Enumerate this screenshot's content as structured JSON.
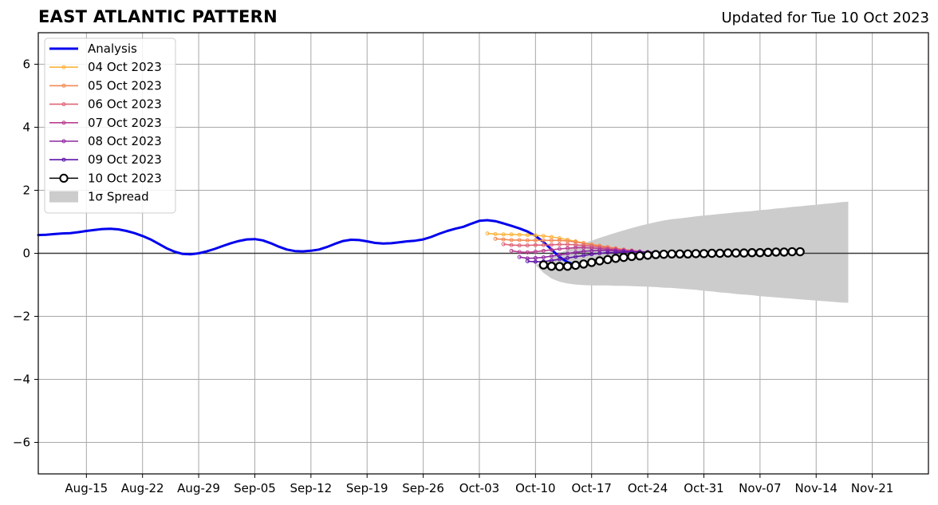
{
  "chart_data": {
    "type": "line",
    "title": "EAST ATLANTIC PATTERN",
    "subtitle": "Updated for Tue 10 Oct 2023",
    "xlabel": "",
    "ylabel": "",
    "xlim": [
      "2023-08-09",
      "2023-11-28"
    ],
    "ylim": [
      -7,
      7
    ],
    "x_ticks": [
      "2023-08-15",
      "2023-08-22",
      "2023-08-29",
      "2023-09-05",
      "2023-09-12",
      "2023-09-19",
      "2023-09-26",
      "2023-10-03",
      "2023-10-10",
      "2023-10-17",
      "2023-10-24",
      "2023-10-31",
      "2023-11-07",
      "2023-11-14",
      "2023-11-21"
    ],
    "x_tick_labels": [
      "Aug-15",
      "Aug-22",
      "Aug-29",
      "Sep-05",
      "Sep-12",
      "Sep-19",
      "Sep-26",
      "Oct-03",
      "Oct-10",
      "Oct-17",
      "Oct-24",
      "Oct-31",
      "Nov-07",
      "Nov-14",
      "Nov-21"
    ],
    "y_ticks": [
      -6,
      -4,
      -2,
      0,
      2,
      4,
      6
    ],
    "y_tick_labels": [
      "−6",
      "−4",
      "−2",
      "0",
      "2",
      "4",
      "6"
    ],
    "grid": true,
    "legend_position": "top-left",
    "colors": {
      "Analysis": "#0000ee",
      "04 Oct 2023": "#fbb441",
      "05 Oct 2023": "#f28a55",
      "06 Oct 2023": "#df6377",
      "07 Oct 2023": "#b93f8f",
      "08 Oct 2023": "#8f28a2",
      "09 Oct 2023": "#5d15a8",
      "10 Oct 2023": "#000000",
      "spread": "#cccccc"
    },
    "analysis": {
      "name": "Analysis",
      "start": "2023-08-09",
      "values": [
        0.58,
        0.59,
        0.61,
        0.63,
        0.64,
        0.67,
        0.71,
        0.74,
        0.77,
        0.78,
        0.76,
        0.71,
        0.64,
        0.55,
        0.44,
        0.3,
        0.16,
        0.05,
        -0.02,
        -0.03,
        0.0,
        0.06,
        0.14,
        0.23,
        0.32,
        0.39,
        0.44,
        0.45,
        0.41,
        0.32,
        0.21,
        0.12,
        0.07,
        0.06,
        0.08,
        0.12,
        0.2,
        0.3,
        0.39,
        0.43,
        0.42,
        0.38,
        0.33,
        0.31,
        0.32,
        0.35,
        0.38,
        0.4,
        0.44,
        0.52,
        0.62,
        0.71,
        0.78,
        0.84,
        0.94,
        1.03,
        1.05,
        1.02,
        0.95,
        0.87,
        0.79,
        0.69,
        0.55,
        0.36,
        0.12,
        -0.12,
        -0.28,
        -0.37
      ]
    },
    "forecasts": [
      {
        "name": "04 Oct 2023",
        "start": "2023-10-04",
        "values": [
          0.63,
          0.61,
          0.6,
          0.6,
          0.59,
          0.58,
          0.57,
          0.55,
          0.52,
          0.48,
          0.43,
          0.38,
          0.33,
          0.27,
          0.22,
          0.17,
          0.12,
          0.08
        ]
      },
      {
        "name": "05 Oct 2023",
        "start": "2023-10-05",
        "values": [
          0.46,
          0.44,
          0.42,
          0.42,
          0.41,
          0.41,
          0.41,
          0.41,
          0.41,
          0.39,
          0.36,
          0.32,
          0.28,
          0.24,
          0.2,
          0.16,
          0.12,
          0.08
        ]
      },
      {
        "name": "06 Oct 2023",
        "start": "2023-10-06",
        "values": [
          0.29,
          0.26,
          0.25,
          0.25,
          0.26,
          0.26,
          0.27,
          0.28,
          0.28,
          0.27,
          0.25,
          0.23,
          0.2,
          0.17,
          0.14,
          0.11,
          0.09,
          0.06
        ]
      },
      {
        "name": "07 Oct 2023",
        "start": "2023-10-07",
        "values": [
          0.08,
          0.04,
          0.03,
          0.05,
          0.08,
          0.11,
          0.14,
          0.16,
          0.18,
          0.18,
          0.17,
          0.15,
          0.13,
          0.11,
          0.09,
          0.07,
          0.05,
          0.04
        ]
      },
      {
        "name": "08 Oct 2023",
        "start": "2023-10-08",
        "values": [
          -0.12,
          -0.16,
          -0.15,
          -0.13,
          -0.09,
          -0.05,
          -0.01,
          0.03,
          0.06,
          0.08,
          0.09,
          0.09,
          0.08,
          0.07,
          0.06,
          0.05,
          0.04,
          0.03
        ]
      },
      {
        "name": "09 Oct 2023",
        "start": "2023-10-09",
        "values": [
          -0.25,
          -0.27,
          -0.26,
          -0.23,
          -0.19,
          -0.15,
          -0.11,
          -0.07,
          -0.03,
          0.0,
          0.02,
          0.03,
          0.04,
          0.04,
          0.04,
          0.03,
          0.03,
          0.03
        ]
      }
    ],
    "current": {
      "name": "10 Oct 2023",
      "start": "2023-10-11",
      "values": [
        -0.37,
        -0.41,
        -0.42,
        -0.41,
        -0.38,
        -0.34,
        -0.29,
        -0.24,
        -0.2,
        -0.16,
        -0.13,
        -0.1,
        -0.08,
        -0.06,
        -0.04,
        -0.03,
        -0.02,
        -0.02,
        -0.02,
        -0.01,
        -0.01,
        0.0,
        0.0,
        0.01,
        0.01,
        0.01,
        0.02,
        0.02,
        0.03,
        0.04,
        0.04,
        0.05,
        0.05
      ]
    },
    "spread": {
      "name": "1σ Spread",
      "start": "2023-10-10",
      "upper": [
        -0.37,
        -0.28,
        -0.15,
        0.0,
        0.12,
        0.22,
        0.31,
        0.4,
        0.49,
        0.57,
        0.65,
        0.73,
        0.8,
        0.87,
        0.93,
        0.99,
        1.04,
        1.08,
        1.11,
        1.14,
        1.17,
        1.2,
        1.22,
        1.25,
        1.27,
        1.3,
        1.32,
        1.34,
        1.37,
        1.39,
        1.42,
        1.44,
        1.47,
        1.49,
        1.52,
        1.54,
        1.57,
        1.59,
        1.62,
        1.64
      ],
      "lower": [
        -0.37,
        -0.62,
        -0.8,
        -0.9,
        -0.96,
        -0.99,
        -1.01,
        -1.02,
        -1.02,
        -1.02,
        -1.03,
        -1.03,
        -1.04,
        -1.05,
        -1.06,
        -1.07,
        -1.09,
        -1.1,
        -1.12,
        -1.14,
        -1.16,
        -1.19,
        -1.21,
        -1.24,
        -1.26,
        -1.29,
        -1.31,
        -1.33,
        -1.36,
        -1.38,
        -1.4,
        -1.42,
        -1.44,
        -1.46,
        -1.48,
        -1.5,
        -1.52,
        -1.54,
        -1.56,
        -1.57
      ]
    },
    "legend": [
      "Analysis",
      "04 Oct 2023",
      "05 Oct 2023",
      "06 Oct 2023",
      "07 Oct 2023",
      "08 Oct 2023",
      "09 Oct 2023",
      "10 Oct 2023",
      "1σ Spread"
    ]
  }
}
